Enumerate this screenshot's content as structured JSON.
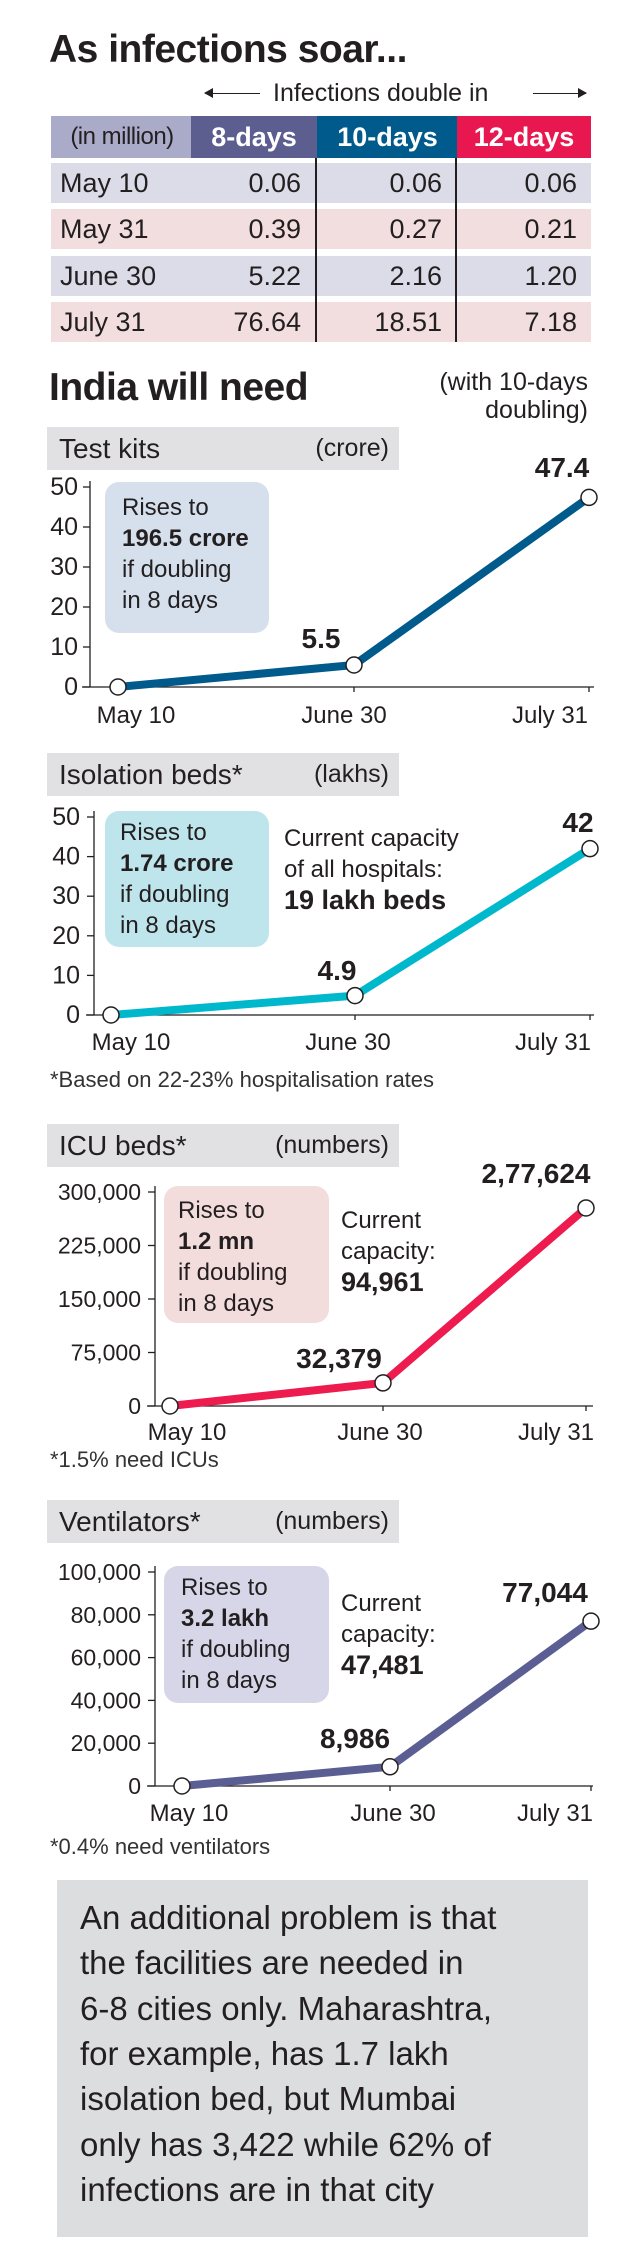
{
  "title": "As infections soar...",
  "table": {
    "caption": "Infections double in",
    "columns": [
      "(in million)",
      "8-days",
      "10-days",
      "12-days"
    ],
    "column_colors": [
      "#aaaac9",
      "#5c5e90",
      "#005a8c",
      "#e8174f"
    ],
    "row_colors": [
      "#dcdce8",
      "#f2dedf"
    ],
    "rows": [
      [
        "May 10",
        "0.06",
        "0.06",
        "0.06"
      ],
      [
        "May 31",
        "0.39",
        "0.27",
        "0.21"
      ],
      [
        "June 30",
        "5.22",
        "2.16",
        "1.20"
      ],
      [
        "July 31",
        "76.64",
        "18.51",
        "7.18"
      ]
    ]
  },
  "section": {
    "title": "India will need",
    "note_line1": "(with 10-days",
    "note_line2": "doubling)"
  },
  "chart_data": [
    {
      "type": "line",
      "title": "Test kits",
      "unit": "(crore)",
      "categories": [
        "May 10",
        "June 30",
        "July 31"
      ],
      "values": [
        0,
        5.5,
        47.4
      ],
      "value_labels": [
        "",
        "5.5",
        "47.4"
      ],
      "ylim": [
        0,
        50
      ],
      "yticks": [
        0,
        10,
        20,
        30,
        40,
        50
      ],
      "ytick_labels": [
        "0",
        "10",
        "20",
        "30",
        "40",
        "50"
      ],
      "color": "#005a8b",
      "callout": {
        "lines": [
          "Rises to",
          "196.5 crore",
          "if doubling",
          "in 8 days"
        ],
        "bg": "#d5e0ec"
      },
      "capacity": null,
      "footnote": null
    },
    {
      "type": "line",
      "title": "Isolation beds*",
      "unit": "(lakhs)",
      "categories": [
        "May 10",
        "June 30",
        "July 31"
      ],
      "values": [
        0,
        4.9,
        42
      ],
      "value_labels": [
        "",
        "4.9",
        "42"
      ],
      "ylim": [
        0,
        50
      ],
      "yticks": [
        0,
        10,
        20,
        30,
        40,
        50
      ],
      "ytick_labels": [
        "0",
        "10",
        "20",
        "30",
        "40",
        "50"
      ],
      "color": "#00b8cc",
      "callout": {
        "lines": [
          "Rises to",
          "1.74 crore",
          "if doubling",
          "in 8 days"
        ],
        "bg": "#bfe5ec"
      },
      "capacity": {
        "lines": [
          "Current capacity",
          "of all hospitals:",
          "19 lakh beds"
        ]
      },
      "footnote": "*Based on 22-23% hospitalisation rates"
    },
    {
      "type": "line",
      "title": "ICU beds*",
      "unit": "(numbers)",
      "categories": [
        "May 10",
        "June 30",
        "July 31"
      ],
      "values": [
        0,
        32379,
        277624
      ],
      "value_labels": [
        "",
        "32,379",
        "2,77,624"
      ],
      "ylim": [
        0,
        300000
      ],
      "yticks": [
        0,
        75000,
        150000,
        225000,
        300000
      ],
      "ytick_labels": [
        "0",
        "75,000",
        "150,000",
        "225,000",
        "300,000"
      ],
      "color": "#ee1b4f",
      "callout": {
        "lines": [
          "Rises to",
          "1.2 mn",
          "if doubling",
          "in 8 days"
        ],
        "bg": "#f3dcdc"
      },
      "capacity": {
        "lines": [
          "Current",
          "capacity:",
          "94,961"
        ]
      },
      "footnote": "*1.5% need ICUs"
    },
    {
      "type": "line",
      "title": "Ventilators*",
      "unit": "(numbers)",
      "categories": [
        "May 10",
        "June 30",
        "July 31"
      ],
      "values": [
        0,
        8986,
        77044
      ],
      "value_labels": [
        "",
        "8,986",
        "77,044"
      ],
      "ylim": [
        0,
        100000
      ],
      "yticks": [
        0,
        20000,
        40000,
        60000,
        80000,
        100000
      ],
      "ytick_labels": [
        "0",
        "20,000",
        "40,000",
        "60,000",
        "80,000",
        "100,000"
      ],
      "color": "#5b5e93",
      "callout": {
        "lines": [
          "Rises to",
          "3.2 lakh",
          "if doubling",
          "in 8 days"
        ],
        "bg": "#d6d6e8"
      },
      "capacity": {
        "lines": [
          "Current",
          "capacity:",
          "47,481"
        ]
      },
      "footnote": "*0.4% need ventilators"
    }
  ],
  "note": {
    "lines": [
      "An additional problem is that",
      "the facilities are needed in",
      "6-8 cities only. Maharashtra,",
      "for example, has 1.7 lakh",
      "isolation bed, but Mumbai",
      "only has 3,422 while 62% of",
      "infections are in that city"
    ]
  }
}
